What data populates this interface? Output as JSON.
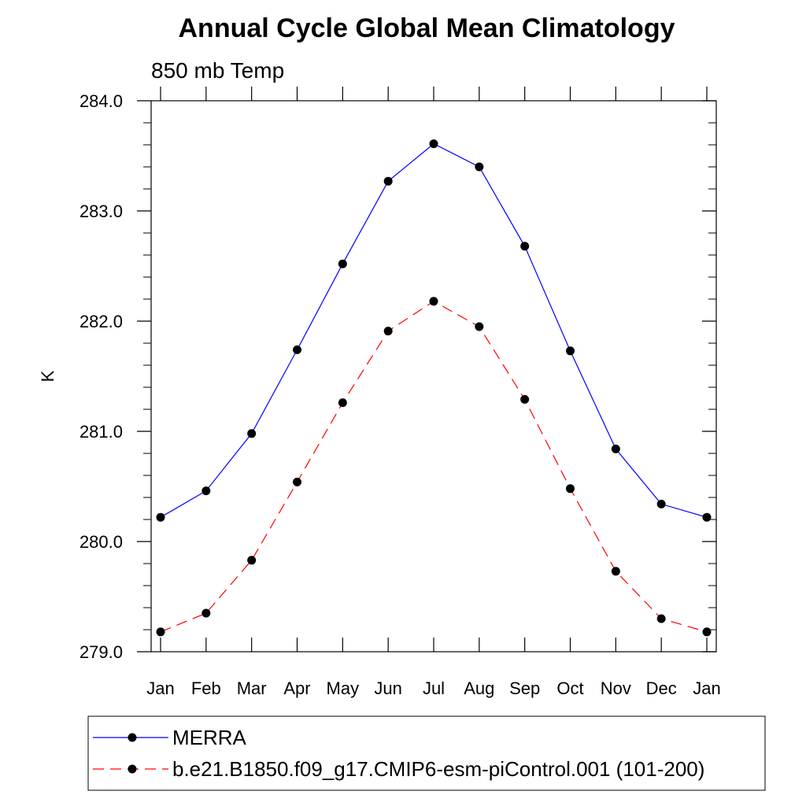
{
  "chart_data": {
    "type": "line",
    "title": "Annual Cycle Global Mean Climatology",
    "subtitle": "850 mb Temp",
    "xlabel": "",
    "ylabel": "K",
    "categories": [
      "Jan",
      "Feb",
      "Mar",
      "Apr",
      "May",
      "Jun",
      "Jul",
      "Aug",
      "Sep",
      "Oct",
      "Nov",
      "Dec",
      "Jan"
    ],
    "ylim": [
      279.0,
      284.0
    ],
    "yticks": [
      "279.0",
      "280.0",
      "281.0",
      "282.0",
      "283.0",
      "284.0"
    ],
    "grid": false,
    "legend_position": "bottom",
    "series": [
      {
        "name": "MERRA",
        "color": "#0000ff",
        "dash": "solid",
        "marker": "filled-circle",
        "values": [
          280.22,
          280.46,
          280.98,
          281.74,
          282.52,
          283.27,
          283.61,
          283.4,
          282.68,
          281.73,
          280.84,
          280.34,
          280.22
        ]
      },
      {
        "name": "b.e21.B1850.f09_g17.CMIP6-esm-piControl.001 (101-200)",
        "color": "#ff0000",
        "dash": "dashed",
        "marker": "filled-circle",
        "values": [
          279.18,
          279.35,
          279.83,
          280.54,
          281.26,
          281.91,
          282.18,
          281.95,
          281.29,
          280.48,
          279.73,
          279.3,
          279.18
        ]
      }
    ]
  }
}
